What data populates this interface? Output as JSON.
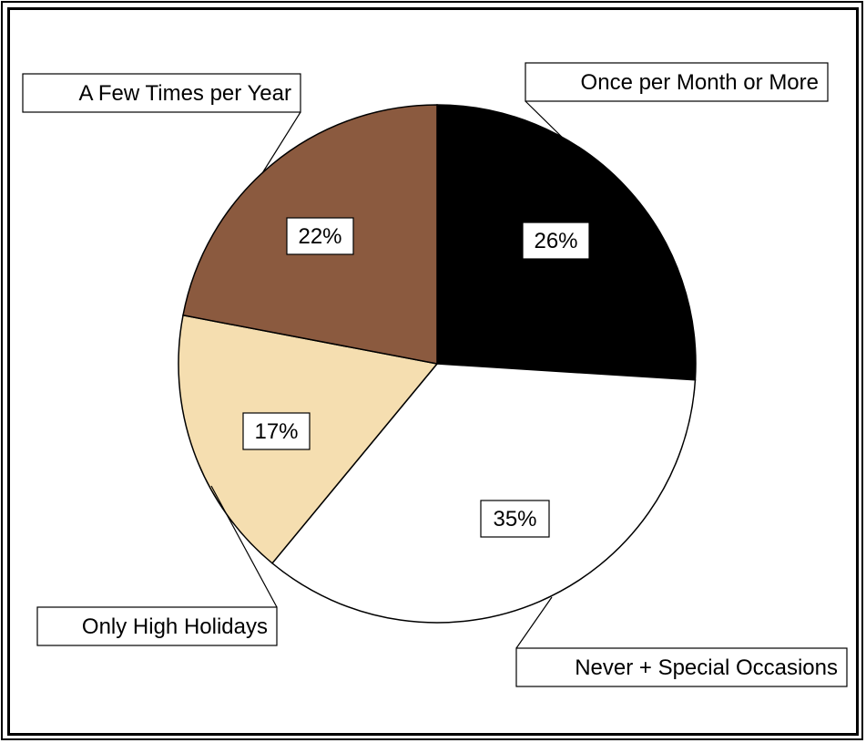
{
  "chart_data": {
    "type": "pie",
    "title": "",
    "slices": [
      {
        "label": "Once per Month or More",
        "value": 26,
        "value_label": "26%",
        "color": "#000000"
      },
      {
        "label": "Never + Special Occasions",
        "value": 35,
        "value_label": "35%",
        "color": "#ffffff"
      },
      {
        "label": "Only High Holidays",
        "value": 17,
        "value_label": "17%",
        "color": "#f5deb0"
      },
      {
        "label": "A Few Times per Year",
        "value": 22,
        "value_label": "22%",
        "color": "#8b5a3f"
      }
    ],
    "legend": "none",
    "labels": "callouts"
  }
}
